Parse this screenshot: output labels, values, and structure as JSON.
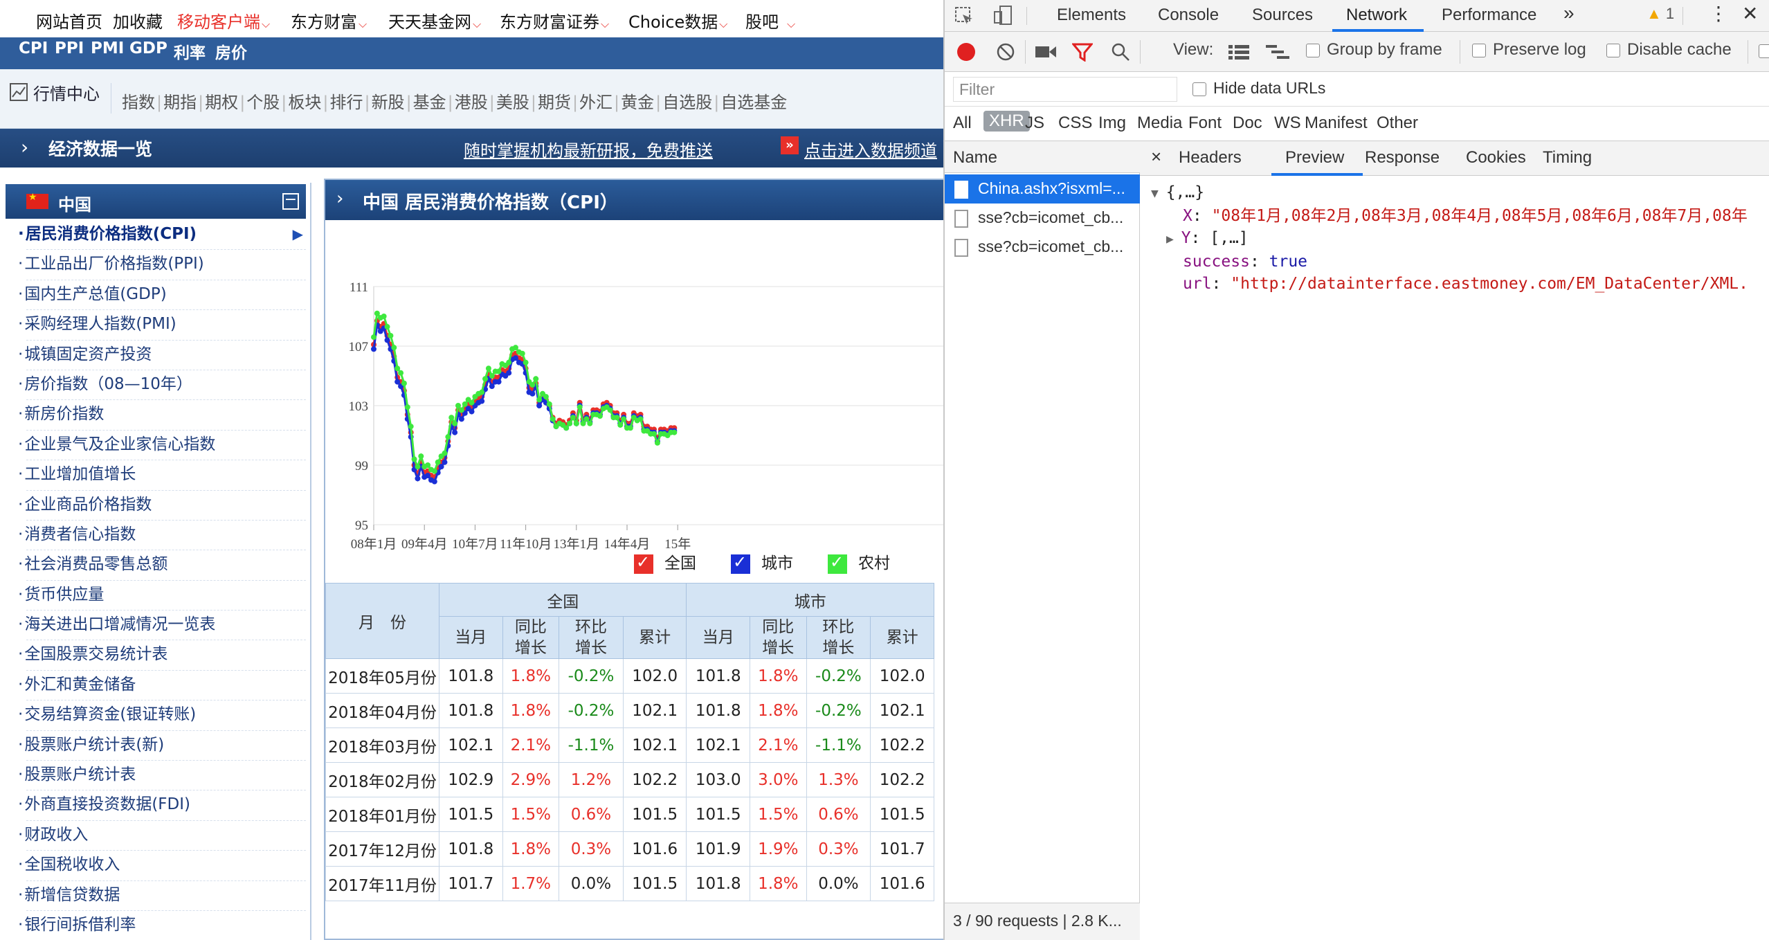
{
  "web": {
    "topnav": [
      {
        "label": "网站首页",
        "red": false,
        "caret": false
      },
      {
        "label": "加收藏",
        "red": false,
        "caret": false
      },
      {
        "label": "移动客户端",
        "red": true,
        "caret": true
      },
      {
        "label": "东方财富",
        "red": false,
        "caret": true
      },
      {
        "label": "天天基金网",
        "red": false,
        "caret": true
      },
      {
        "label": "东方财富证券",
        "red": false,
        "caret": true
      },
      {
        "label": "Choice数据",
        "red": false,
        "caret": true
      },
      {
        "label": "股吧",
        "red": false,
        "caret": true
      }
    ],
    "bluebar": [
      "CPI",
      "PPI",
      "PMI",
      "GDP",
      "利率",
      "房价"
    ],
    "hq": {
      "title": "行情中心",
      "links": [
        "指数",
        "期指",
        "期权",
        "个股",
        "板块",
        "排行",
        "新股",
        "基金",
        "港股",
        "美股",
        "期货",
        "外汇",
        "黄金",
        "自选股",
        "自选基金"
      ]
    },
    "darkbar": {
      "title": "经济数据一览",
      "link1": "随时掌握机构最新研报，免费推送",
      "link2_icon": "»",
      "link2": "点击进入数据频道"
    },
    "sidebar": {
      "title": "中国",
      "collapse": "−",
      "items": [
        "居民消费价格指数(CPI)",
        "工业品出厂价格指数(PPI)",
        "国内生产总值(GDP)",
        "采购经理人指数(PMI)",
        "城镇固定资产投资",
        "房价指数（08—10年）",
        "新房价指数",
        "企业景气及企业家信心指数",
        "工业增加值增长",
        "企业商品价格指数",
        "消费者信心指数",
        "社会消费品零售总额",
        "货币供应量",
        "海关进出口增减情况一览表",
        "全国股票交易统计表",
        "外汇和黄金储备",
        "交易结算资金(银证转账)",
        "股票账户统计表(新)",
        "股票账户统计表",
        "外商直接投资数据(FDI)",
        "财政收入",
        "全国税收收入",
        "新增信贷数据",
        "银行间拆借利率"
      ]
    },
    "panel_title": "中国 居民消费价格指数（CPI）",
    "legend": [
      "全国",
      "城市",
      "农村"
    ],
    "table": {
      "month_header": "月　份",
      "groups": [
        "全国",
        "城市"
      ],
      "cols": [
        "当月",
        "同比\n增长",
        "环比\n增长",
        "累计"
      ],
      "rows": [
        [
          "2018年05月份",
          "101.8",
          "1.8%",
          "-0.2%",
          "102.0",
          "101.8",
          "1.8%",
          "-0.2%",
          "102.0"
        ],
        [
          "2018年04月份",
          "101.8",
          "1.8%",
          "-0.2%",
          "102.1",
          "101.8",
          "1.8%",
          "-0.2%",
          "102.1"
        ],
        [
          "2018年03月份",
          "102.1",
          "2.1%",
          "-1.1%",
          "102.1",
          "102.1",
          "2.1%",
          "-1.1%",
          "102.2"
        ],
        [
          "2018年02月份",
          "102.9",
          "2.9%",
          "1.2%",
          "102.2",
          "103.0",
          "3.0%",
          "1.3%",
          "102.2"
        ],
        [
          "2018年01月份",
          "101.5",
          "1.5%",
          "0.6%",
          "101.5",
          "101.5",
          "1.5%",
          "0.6%",
          "101.5"
        ],
        [
          "2017年12月份",
          "101.8",
          "1.8%",
          "0.3%",
          "101.6",
          "101.9",
          "1.9%",
          "0.3%",
          "101.7"
        ],
        [
          "2017年11月份",
          "101.7",
          "1.7%",
          "0.0%",
          "101.5",
          "101.8",
          "1.8%",
          "0.0%",
          "101.6"
        ]
      ]
    }
  },
  "chart_data": {
    "type": "line",
    "xticks": [
      "08年1月",
      "09年4月",
      "10年7月",
      "11年10月",
      "13年1月",
      "14年4月",
      "15年"
    ],
    "ylim": [
      95,
      111
    ],
    "yticks": [
      95,
      99,
      103,
      107,
      111
    ],
    "grid": true,
    "legend_position": "bottom",
    "series": [
      {
        "name": "全国",
        "color": "#e8302a",
        "values": [
          107.1,
          108.7,
          108.3,
          108.5,
          107.7,
          107.1,
          106.3,
          104.9,
          104.6,
          104.0,
          102.4,
          101.2,
          99.0,
          98.4,
          99.2,
          98.5,
          98.6,
          98.3,
          98.2,
          98.8,
          99.2,
          99.5,
          100.6,
          101.9,
          101.5,
          102.7,
          102.4,
          102.8,
          103.1,
          102.9,
          103.3,
          103.5,
          103.6,
          104.4,
          105.1,
          104.6,
          104.9,
          104.9,
          105.4,
          105.3,
          105.5,
          106.4,
          106.5,
          106.2,
          106.1,
          105.5,
          104.2,
          104.1,
          104.5,
          103.2,
          103.6,
          103.4,
          103.0,
          102.2,
          101.8,
          102.0,
          101.9,
          101.7,
          102.0,
          102.5,
          102.0,
          103.2,
          102.1,
          102.4,
          102.1,
          102.7,
          102.7,
          102.6,
          103.1,
          103.2,
          103.0,
          102.5,
          102.5,
          102.0,
          102.4,
          101.8,
          101.8,
          102.5,
          102.3,
          102.4,
          101.6,
          101.6,
          101.4,
          101.4,
          100.8,
          101.4,
          101.4,
          101.3,
          101.5,
          101.5
        ]
      },
      {
        "name": "城市",
        "color": "#1a2fd6",
        "values": [
          106.8,
          108.4,
          108.0,
          108.2,
          107.4,
          106.8,
          106.0,
          104.6,
          104.3,
          103.7,
          102.1,
          100.9,
          98.7,
          98.1,
          98.9,
          98.2,
          98.3,
          98.0,
          97.9,
          98.5,
          98.9,
          99.2,
          100.3,
          101.6,
          101.2,
          102.4,
          102.1,
          102.5,
          102.8,
          102.6,
          103.0,
          103.2,
          103.3,
          104.1,
          104.8,
          104.3,
          104.6,
          104.6,
          105.1,
          105.0,
          105.2,
          106.1,
          106.2,
          105.9,
          105.8,
          105.2,
          103.9,
          103.8,
          104.3,
          103.0,
          103.4,
          103.2,
          102.8,
          102.0,
          101.6,
          101.8,
          101.7,
          101.5,
          101.8,
          102.3,
          101.8,
          103.0,
          101.9,
          102.2,
          101.9,
          102.5,
          102.5,
          102.4,
          102.9,
          103.0,
          102.8,
          102.3,
          102.3,
          101.8,
          102.2,
          101.6,
          101.6,
          102.3,
          102.1,
          102.2,
          101.4,
          101.4,
          101.2,
          101.2,
          100.6,
          101.2,
          101.2,
          101.1,
          101.3,
          101.3
        ]
      },
      {
        "name": "农村",
        "color": "#3ee83e",
        "values": [
          107.6,
          109.2,
          108.9,
          109.0,
          108.3,
          107.7,
          106.9,
          105.5,
          105.2,
          104.5,
          102.9,
          101.6,
          99.4,
          98.9,
          99.6,
          98.9,
          99.0,
          98.7,
          98.6,
          99.2,
          99.6,
          99.8,
          100.9,
          102.2,
          101.8,
          103.0,
          102.7,
          103.1,
          103.4,
          103.2,
          103.6,
          103.8,
          103.9,
          104.8,
          105.5,
          105.0,
          105.3,
          105.3,
          105.8,
          105.7,
          105.9,
          106.8,
          106.9,
          106.6,
          106.5,
          105.9,
          104.6,
          104.4,
          104.8,
          103.4,
          103.8,
          103.6,
          103.1,
          102.1,
          101.6,
          101.8,
          101.7,
          101.5,
          101.8,
          102.2,
          101.8,
          102.9,
          101.8,
          102.1,
          101.8,
          102.4,
          102.4,
          102.3,
          102.8,
          102.9,
          102.7,
          102.2,
          102.2,
          101.7,
          102.1,
          101.5,
          101.5,
          102.2,
          102.0,
          102.1,
          101.3,
          101.3,
          101.1,
          101.1,
          100.5,
          101.1,
          101.1,
          101.0,
          101.2,
          101.2
        ]
      }
    ]
  },
  "devtools": {
    "tabs": [
      "Elements",
      "Console",
      "Sources",
      "Network",
      "Performance"
    ],
    "more": "»",
    "warnings": "1",
    "view_label": "View:",
    "checks": [
      "Group by frame",
      "Preserve log",
      "Disable cache"
    ],
    "filter_placeholder": "Filter",
    "hide_data_urls": "Hide data URLs",
    "types": [
      "All",
      "XHR",
      "JS",
      "CSS",
      "Img",
      "Media",
      "Font",
      "Doc",
      "WS",
      "Manifest",
      "Other"
    ],
    "name_header": "Name",
    "requests": [
      "China.ashx?isxml=...",
      "sse?cb=icomet_cb...",
      "sse?cb=icomet_cb..."
    ],
    "footer": "3 / 90 requests | 2.8 K...",
    "detail_tabs": [
      "Headers",
      "Preview",
      "Response",
      "Cookies",
      "Timing"
    ],
    "json": {
      "root": "{,…}",
      "x_key": "X",
      "x_val": "\"08年1月,08年2月,08年3月,08年4月,08年5月,08年6月,08年7月,08年",
      "y_key": "Y",
      "y_val": "[,…]",
      "success_key": "success",
      "success_val": "true",
      "url_key": "url",
      "url_val": "\"http://datainterface.eastmoney.com/EM_DataCenter/XML."
    }
  }
}
